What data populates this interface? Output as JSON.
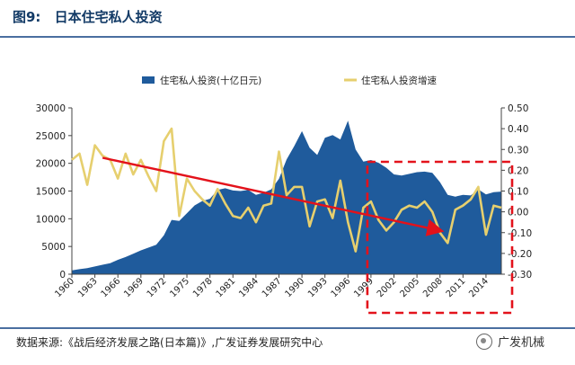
{
  "header": {
    "figure_num": "图9:",
    "title": "日本住宅私人投资"
  },
  "source_text": "数据来源:《战后经济发展之路(日本篇)》,广发证券发展研究中心",
  "watermark_text": "广发机械",
  "chart_data": {
    "type": "area+line",
    "title": "日本住宅私人投资",
    "years": [
      1960,
      1961,
      1962,
      1963,
      1964,
      1965,
      1966,
      1967,
      1968,
      1969,
      1970,
      1971,
      1972,
      1973,
      1974,
      1975,
      1976,
      1977,
      1978,
      1979,
      1980,
      1981,
      1982,
      1983,
      1984,
      1985,
      1986,
      1987,
      1988,
      1989,
      1990,
      1991,
      1992,
      1993,
      1994,
      1995,
      1996,
      1997,
      1998,
      1999,
      2000,
      2001,
      2002,
      2003,
      2004,
      2005,
      2006,
      2007,
      2008,
      2009,
      2010,
      2011,
      2012,
      2013,
      2014,
      2015,
      2016
    ],
    "x_tick_labels": [
      "1960",
      "1963",
      "1966",
      "1969",
      "1972",
      "1975",
      "1978",
      "1981",
      "1984",
      "1987",
      "1990",
      "1993",
      "1996",
      "1999",
      "2002",
      "2005",
      "2008",
      "2011",
      "2014"
    ],
    "series": [
      {
        "name": "住宅私人投资(十亿日元)",
        "type": "area",
        "axis": "left",
        "color": "#1f5b9c",
        "values": [
          700,
          900,
          1100,
          1400,
          1700,
          2000,
          2600,
          3100,
          3700,
          4300,
          4800,
          5300,
          7000,
          9800,
          9600,
          11000,
          12400,
          13200,
          13600,
          15200,
          15500,
          15100,
          15000,
          15200,
          14300,
          14700,
          15300,
          17200,
          20700,
          23100,
          25800,
          22800,
          21500,
          24600,
          25100,
          24300,
          27700,
          22500,
          20300,
          20600,
          20100,
          19200,
          18000,
          17800,
          18100,
          18400,
          18500,
          18300,
          16600,
          14300,
          14000,
          14300,
          14200,
          15300,
          14400,
          14800,
          14900
        ]
      },
      {
        "name": "住宅私人投资增速",
        "type": "line",
        "axis": "right",
        "color": "#e6cf6e",
        "values": [
          0.25,
          0.28,
          0.13,
          0.32,
          0.27,
          0.25,
          0.16,
          0.28,
          0.18,
          0.25,
          0.17,
          0.1,
          0.34,
          0.4,
          -0.02,
          0.16,
          0.1,
          0.06,
          0.03,
          0.11,
          0.04,
          -0.02,
          -0.03,
          0.02,
          -0.05,
          0.03,
          0.04,
          0.29,
          0.08,
          0.12,
          0.12,
          -0.07,
          0.05,
          0.06,
          -0.03,
          0.15,
          -0.05,
          -0.19,
          0.02,
          0.05,
          -0.04,
          -0.09,
          -0.05,
          0.01,
          0.03,
          0.02,
          0.05,
          0.0,
          -0.1,
          -0.15,
          0.01,
          0.03,
          0.06,
          0.12,
          -0.11,
          0.03,
          0.02
        ]
      }
    ],
    "y_left": {
      "min": 0,
      "max": 30000,
      "ticks": [
        0,
        5000,
        10000,
        15000,
        20000,
        25000,
        30000
      ]
    },
    "y_right": {
      "min": -0.3,
      "max": 0.5,
      "ticks": [
        -0.3,
        -0.2,
        -0.1,
        0.0,
        0.1,
        0.2,
        0.3,
        0.4,
        0.5
      ],
      "tick_labels": [
        "-0.30",
        "-0.20",
        "-0.10",
        "0.00",
        "0.10",
        "0.20",
        "0.30",
        "0.40",
        "0.50"
      ]
    },
    "trend_arrow": {
      "from_year": 1964,
      "from_value": 0.26,
      "to_year": 2008,
      "to_value": -0.09,
      "color": "#e3121b"
    },
    "highlight_box": {
      "from_year": 1999,
      "to_year": 2016,
      "color": "#e3121b",
      "style": "dashed"
    },
    "legend_position": "top"
  }
}
